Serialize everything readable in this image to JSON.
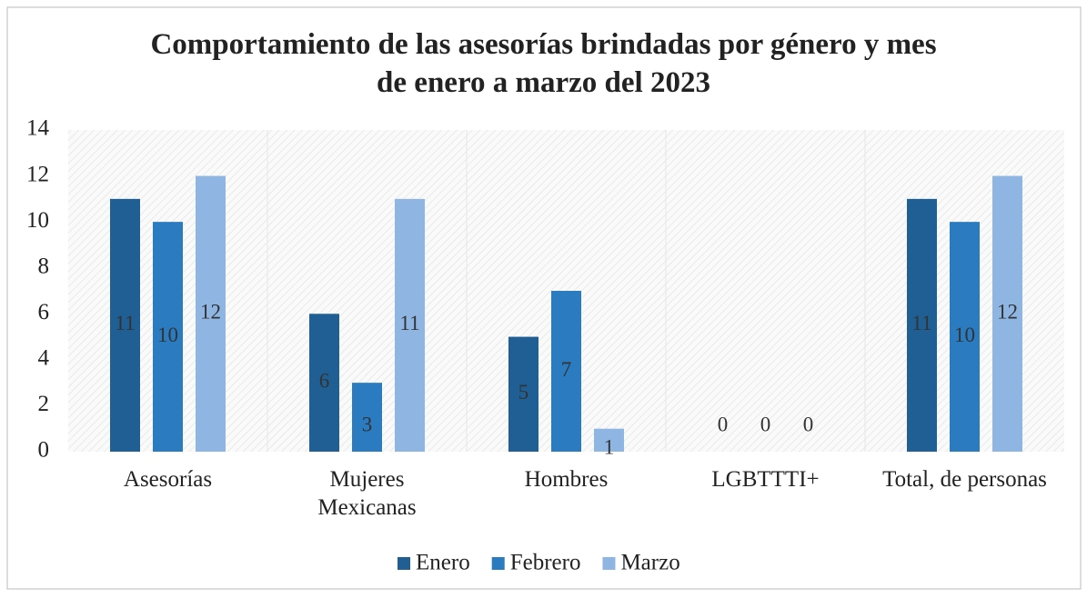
{
  "chart_data": {
    "type": "bar",
    "title": "Comportamiento de las asesorías brindadas  por género y mes\nde enero a marzo del 2023",
    "categories": [
      "Asesorías",
      "Mujeres\nMexicanas",
      "Hombres",
      "LGBTTTI+",
      "Total, de personas"
    ],
    "series": [
      {
        "name": "Enero",
        "color": "#1f5f93",
        "values": [
          11,
          6,
          5,
          0,
          11
        ]
      },
      {
        "name": "Febrero",
        "color": "#2a7bc0",
        "values": [
          10,
          3,
          7,
          0,
          10
        ]
      },
      {
        "name": "Marzo",
        "color": "#8fb5e2",
        "values": [
          12,
          11,
          1,
          0,
          12
        ]
      }
    ],
    "ylim": [
      0,
      14
    ],
    "yticks": [
      0,
      2,
      4,
      6,
      8,
      10,
      12,
      14
    ],
    "grid": false,
    "legend": "bottom"
  }
}
